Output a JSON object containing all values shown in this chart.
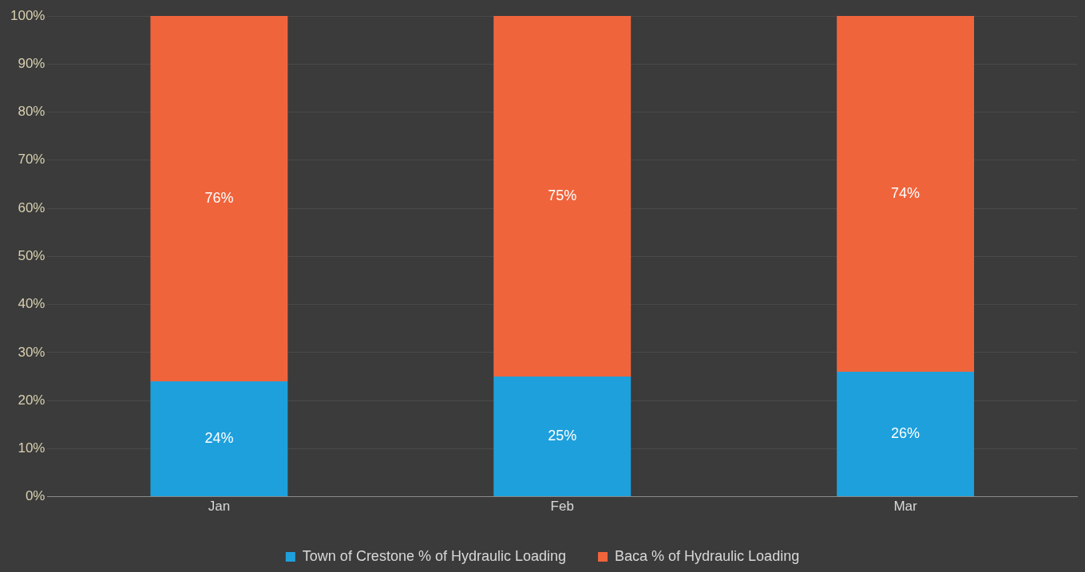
{
  "chart_data": {
    "type": "bar",
    "stacked": true,
    "categories": [
      "Jan",
      "Feb",
      "Mar"
    ],
    "series": [
      {
        "name": "Town of Crestone % of Hydraulic Loading",
        "color": "#1ea0dc",
        "values": [
          24,
          25,
          26
        ],
        "value_labels": [
          "24%",
          "25%",
          "26%"
        ]
      },
      {
        "name": "Baca % of Hydraulic Loading",
        "color": "#f0643c",
        "values": [
          76,
          75,
          74
        ],
        "value_labels": [
          "76%",
          "75%",
          "74%"
        ]
      }
    ],
    "ylim": [
      0,
      100
    ],
    "yticks": [
      {
        "value": 0,
        "label": "0%"
      },
      {
        "value": 10,
        "label": "10%"
      },
      {
        "value": 20,
        "label": "20%"
      },
      {
        "value": 30,
        "label": "30%"
      },
      {
        "value": 40,
        "label": "40%"
      },
      {
        "value": 50,
        "label": "50%"
      },
      {
        "value": 60,
        "label": "60%"
      },
      {
        "value": 70,
        "label": "70%"
      },
      {
        "value": 80,
        "label": "80%"
      },
      {
        "value": 90,
        "label": "90%"
      },
      {
        "value": 100,
        "label": "100%"
      }
    ],
    "grid": "y",
    "legend": "bottom"
  }
}
